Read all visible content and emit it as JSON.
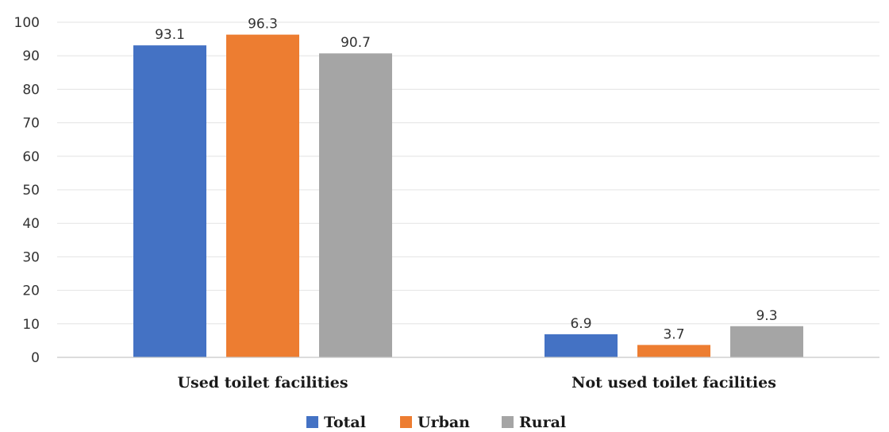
{
  "chart_data": {
    "type": "bar",
    "title": "",
    "xlabel": "",
    "ylabel": "",
    "categories": [
      "Used toilet facilities",
      "Not used toilet facilities"
    ],
    "series": [
      {
        "name": "Total",
        "values": [
          93.1,
          6.9
        ],
        "color": "#4472C4"
      },
      {
        "name": "Urban",
        "values": [
          96.3,
          3.7
        ],
        "color": "#ED7D31"
      },
      {
        "name": "Rural",
        "values": [
          90.7,
          9.3
        ],
        "color": "#A5A5A5"
      }
    ],
    "ylim": [
      0,
      100
    ],
    "yticks": [
      0,
      10,
      20,
      30,
      40,
      50,
      60,
      70,
      80,
      90,
      100
    ],
    "grid": true,
    "legend": "bottom-center"
  }
}
